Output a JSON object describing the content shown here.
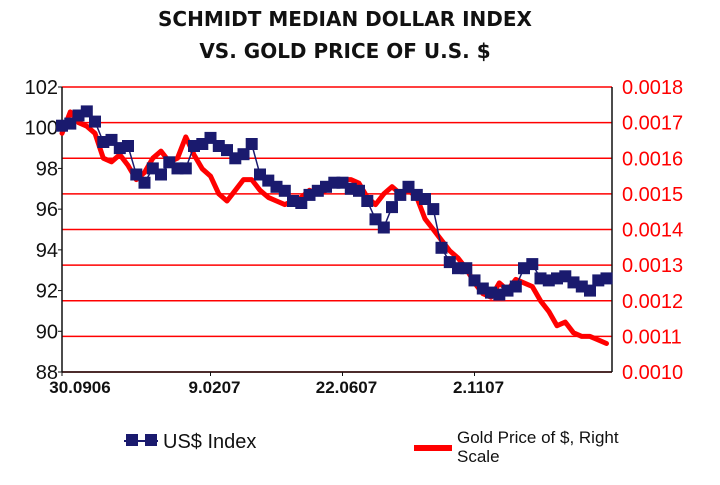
{
  "chart_data": {
    "type": "line",
    "title_lines": [
      "SCHMIDT MEDIAN DOLLAR INDEX",
      "VS. GOLD PRICE OF U.S. $"
    ],
    "left_axis": {
      "ylim": [
        88,
        102
      ],
      "ticks": [
        88,
        90,
        92,
        94,
        96,
        98,
        100,
        102
      ],
      "tick_labels": [
        "88",
        "90",
        "92",
        "94",
        "96",
        "98",
        "100",
        "102"
      ]
    },
    "right_axis": {
      "ylim": [
        0.001,
        0.0018
      ],
      "ticks": [
        0.001,
        0.0011,
        0.0012,
        0.0013,
        0.0014,
        0.0015,
        0.0016,
        0.0017,
        0.0018
      ],
      "tick_labels": [
        "0.0010",
        "0.0011",
        "0.0012",
        "0.0013",
        "0.0014",
        "0.0015",
        "0.0016",
        "0.0017",
        "0.0018"
      ]
    },
    "x_axis": {
      "range": [
        0,
        100
      ],
      "tick_positions": [
        0,
        27,
        51,
        75
      ],
      "tick_labels": [
        "30.0906",
        "9.0207",
        "22.0607",
        "2.1107"
      ]
    },
    "grid": {
      "horizontal": true,
      "color": "#ff0000"
    },
    "series": [
      {
        "name": "US$ Index",
        "axis": "left",
        "style": "square-markers",
        "color": "#1a1a6e",
        "x": [
          0,
          1.5,
          3,
          4.5,
          6,
          7.5,
          9,
          10.5,
          12,
          13.5,
          15,
          16.5,
          18,
          19.5,
          21,
          22.5,
          24,
          25.5,
          27,
          28.5,
          30,
          31.5,
          33,
          34.5,
          36,
          37.5,
          39,
          40.5,
          42,
          43.5,
          45,
          46.5,
          48,
          49.5,
          51,
          52.5,
          54,
          55.5,
          57,
          58.5,
          60,
          61.5,
          63,
          64.5,
          66,
          67.5,
          69,
          70.5,
          72,
          73.5,
          75,
          76.5,
          78,
          79.5,
          81,
          82.5,
          84,
          85.5,
          87,
          88.5,
          90,
          91.5,
          93,
          94.5,
          96,
          97.5,
          99
        ],
        "values": [
          100.1,
          100.2,
          100.6,
          100.8,
          100.3,
          99.3,
          99.4,
          99.0,
          99.1,
          97.7,
          97.3,
          98.0,
          97.7,
          98.3,
          98.0,
          98.0,
          99.1,
          99.2,
          99.5,
          99.1,
          98.9,
          98.5,
          98.7,
          99.2,
          97.7,
          97.4,
          97.1,
          96.9,
          96.4,
          96.3,
          96.7,
          96.9,
          97.1,
          97.3,
          97.3,
          97.0,
          96.9,
          96.4,
          95.5,
          95.1,
          96.1,
          96.7,
          97.1,
          96.7,
          96.5,
          96.0,
          94.1,
          93.4,
          93.1,
          93.1,
          92.5,
          92.1,
          91.9,
          91.8,
          92.0,
          92.2,
          93.1,
          93.3,
          92.6,
          92.5,
          92.6,
          92.7,
          92.4,
          92.2,
          92.0,
          92.5,
          92.6
        ]
      },
      {
        "name": "Gold Price of $, Right Scale",
        "axis": "right",
        "style": "thick-line",
        "color": "#ff0000",
        "x": [
          0,
          1.5,
          3,
          4.5,
          6,
          7.5,
          9,
          10.5,
          12,
          13.5,
          15,
          16.5,
          18,
          19.5,
          21,
          22.5,
          24,
          25.5,
          27,
          28.5,
          30,
          31.5,
          33,
          34.5,
          36,
          37.5,
          39,
          40.5,
          42,
          43.5,
          45,
          46.5,
          48,
          49.5,
          51,
          52.5,
          54,
          55.5,
          57,
          58.5,
          60,
          61.5,
          63,
          64.5,
          66,
          67.5,
          69,
          70.5,
          72,
          73.5,
          75,
          76.5,
          78,
          79.5,
          81,
          82.5,
          84,
          85.5,
          87,
          88.5,
          90,
          91.5,
          93,
          94.5,
          96,
          97.5,
          99
        ],
        "values": [
          0.00167,
          0.00173,
          0.0017,
          0.00169,
          0.00167,
          0.0016,
          0.00159,
          0.00161,
          0.00158,
          0.00154,
          0.00156,
          0.0016,
          0.00162,
          0.00159,
          0.0016,
          0.00166,
          0.00161,
          0.00157,
          0.00155,
          0.0015,
          0.00148,
          0.00151,
          0.00154,
          0.00154,
          0.00151,
          0.00149,
          0.00148,
          0.00147,
          0.00148,
          0.00149,
          0.00151,
          0.0015,
          0.00151,
          0.00153,
          0.00154,
          0.00154,
          0.00153,
          0.00149,
          0.00147,
          0.0015,
          0.00152,
          0.0015,
          0.00151,
          0.00149,
          0.00143,
          0.0014,
          0.00137,
          0.00134,
          0.00132,
          0.00129,
          0.00125,
          0.00122,
          0.00121,
          0.00125,
          0.00123,
          0.00126,
          0.00125,
          0.00124,
          0.0012,
          0.00117,
          0.00113,
          0.00114,
          0.00111,
          0.0011,
          0.0011,
          0.00109,
          0.00108
        ]
      }
    ],
    "legend": {
      "placement": "bottom",
      "items": [
        {
          "label": "US$ Index",
          "marker": "square-line",
          "color": "#1a1a6e"
        },
        {
          "label_lines": [
            "Gold Price of $, Right",
            "Scale"
          ],
          "marker": "thick-line",
          "color": "#ff0000"
        }
      ]
    }
  }
}
